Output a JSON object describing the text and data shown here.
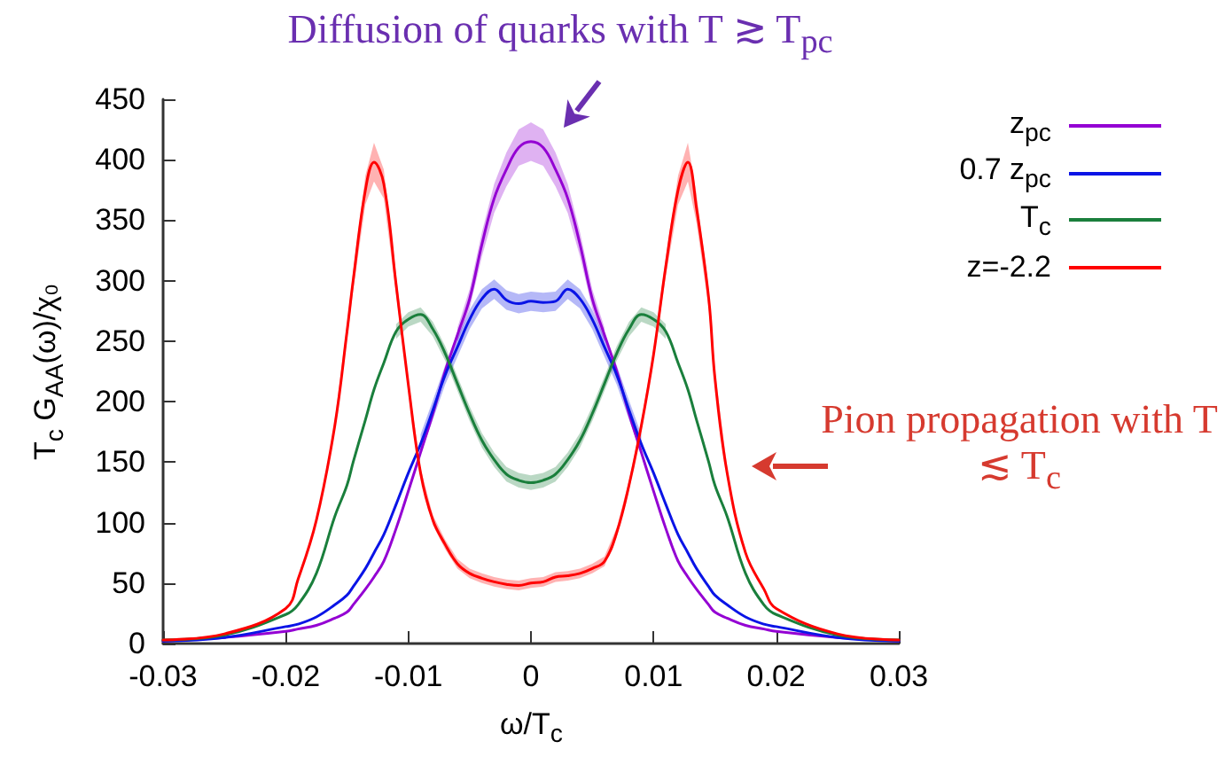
{
  "chart_data": {
    "type": "line",
    "xlabel": "ω/T$_{c}$",
    "ylabel": "T$_{c}$ G$_{AA}$(ω)/χ₀",
    "x": [
      -0.03,
      -0.025,
      -0.02,
      -0.019,
      -0.0175,
      -0.016,
      -0.015,
      -0.0145,
      -0.0135,
      -0.0128,
      -0.012,
      -0.011,
      -0.01,
      -0.009,
      -0.008,
      -0.007,
      -0.006,
      -0.005,
      -0.004,
      -0.003,
      -0.002,
      -0.001,
      0,
      0.001,
      0.002,
      0.003,
      0.004,
      0.005,
      0.006,
      0.007,
      0.008,
      0.009,
      0.01,
      0.011,
      0.012,
      0.0128,
      0.0135,
      0.0145,
      0.015,
      0.016,
      0.0175,
      0.019,
      0.02,
      0.025,
      0.03
    ],
    "series": [
      {
        "name": "z$_{pc}$",
        "color": "#9400d3",
        "values": [
          2,
          5,
          10,
          12,
          15,
          21,
          26,
          32,
          45,
          55,
          68,
          95,
          126,
          158,
          190,
          225,
          255,
          285,
          330,
          368,
          392,
          410,
          415,
          410,
          392,
          368,
          330,
          285,
          255,
          225,
          190,
          158,
          126,
          95,
          68,
          55,
          45,
          32,
          26,
          21,
          15,
          12,
          10,
          5,
          2
        ],
        "lower": [
          null,
          null,
          null,
          null,
          null,
          null,
          null,
          null,
          null,
          null,
          null,
          null,
          null,
          null,
          null,
          null,
          249,
          277,
          320,
          356,
          378,
          395,
          399,
          395,
          378,
          356,
          320,
          277,
          249,
          null,
          null,
          null,
          null,
          null,
          null,
          null,
          null,
          null,
          null,
          null,
          null,
          null,
          null,
          null,
          null
        ],
        "upper": [
          null,
          null,
          null,
          null,
          null,
          null,
          null,
          null,
          null,
          null,
          null,
          null,
          null,
          null,
          null,
          null,
          261,
          293,
          340,
          380,
          406,
          425,
          431,
          425,
          406,
          380,
          340,
          293,
          261,
          null,
          null,
          null,
          null,
          null,
          null,
          null,
          null,
          null,
          null,
          null,
          null,
          null,
          null,
          null,
          null
        ]
      },
      {
        "name": "0.7 z$_{pc}$",
        "color": "#0a14e6",
        "values": [
          2,
          5,
          14,
          16,
          22,
          32,
          40,
          47,
          62,
          75,
          90,
          115,
          141,
          165,
          193,
          222,
          245,
          268,
          285,
          293,
          284,
          281,
          283,
          282,
          283,
          293,
          285,
          268,
          245,
          222,
          193,
          165,
          141,
          115,
          90,
          75,
          62,
          47,
          40,
          32,
          22,
          16,
          14,
          5,
          2
        ],
        "lower": [
          null,
          null,
          null,
          null,
          null,
          null,
          null,
          null,
          null,
          null,
          null,
          null,
          null,
          157,
          185,
          214,
          237,
          260,
          277,
          285,
          276,
          273,
          275,
          274,
          275,
          285,
          277,
          260,
          237,
          214,
          185,
          157,
          null,
          null,
          null,
          null,
          null,
          null,
          null,
          null,
          null,
          null,
          null,
          null,
          null
        ],
        "upper": [
          null,
          null,
          null,
          null,
          null,
          null,
          null,
          null,
          null,
          null,
          null,
          null,
          null,
          173,
          201,
          230,
          253,
          276,
          293,
          301,
          292,
          289,
          291,
          290,
          291,
          301,
          293,
          276,
          253,
          230,
          201,
          173,
          null,
          null,
          null,
          null,
          null,
          null,
          null,
          null,
          null,
          null,
          null,
          null,
          null
        ]
      },
      {
        "name": "T$_{c}$",
        "color": "#1a7f3c",
        "values": [
          3,
          7,
          24,
          32,
          58,
          105,
          131,
          150,
          185,
          210,
          232,
          258,
          268,
          272,
          260,
          240,
          215,
          190,
          168,
          152,
          140,
          135,
          133,
          135,
          140,
          152,
          168,
          190,
          215,
          240,
          260,
          272,
          268,
          258,
          232,
          210,
          185,
          150,
          131,
          105,
          58,
          32,
          24,
          7,
          3
        ],
        "lower": [
          null,
          null,
          null,
          null,
          null,
          null,
          null,
          null,
          null,
          null,
          null,
          252,
          262,
          266,
          254,
          234,
          209,
          184,
          162,
          146,
          134,
          129,
          127,
          129,
          134,
          146,
          162,
          184,
          209,
          234,
          254,
          266,
          262,
          252,
          null,
          null,
          null,
          null,
          null,
          null,
          null,
          null,
          null,
          null,
          null
        ],
        "upper": [
          null,
          null,
          null,
          null,
          null,
          null,
          null,
          null,
          null,
          null,
          null,
          264,
          274,
          278,
          266,
          246,
          221,
          196,
          174,
          158,
          146,
          141,
          139,
          141,
          146,
          158,
          174,
          196,
          221,
          246,
          266,
          278,
          274,
          264,
          null,
          null,
          null,
          null,
          null,
          null,
          null,
          null,
          null,
          null,
          null
        ]
      },
      {
        "name": "z=-2.2",
        "color": "#ff0000",
        "values": [
          3,
          8,
          29,
          53,
          102,
          180,
          258,
          300,
          375,
          398,
          380,
          297,
          214,
          141,
          102,
          82,
          66,
          58,
          54,
          51,
          49,
          48,
          50,
          51,
          55,
          56,
          58,
          62,
          68,
          92,
          131,
          180,
          239,
          312,
          375,
          398,
          360,
          285,
          220,
          141,
          75,
          45,
          29,
          8,
          3
        ],
        "lower": [
          null,
          null,
          null,
          null,
          null,
          175,
          252,
          292,
          363,
          382,
          368,
          289,
          210,
          137,
          98,
          78,
          62,
          54,
          50,
          47,
          45,
          44,
          46,
          47,
          51,
          52,
          54,
          58,
          64,
          88,
          127,
          176,
          235,
          304,
          363,
          382,
          348,
          277,
          214,
          136,
          null,
          null,
          null,
          null,
          null
        ],
        "upper": [
          null,
          null,
          null,
          null,
          null,
          185,
          264,
          308,
          387,
          414,
          392,
          305,
          218,
          145,
          106,
          86,
          70,
          62,
          58,
          55,
          53,
          52,
          54,
          55,
          59,
          60,
          62,
          66,
          72,
          96,
          135,
          184,
          243,
          320,
          387,
          414,
          372,
          293,
          226,
          146,
          null,
          null,
          null,
          null,
          null
        ]
      }
    ],
    "xlim": [
      -0.03,
      0.03
    ],
    "xticks": [
      -0.03,
      -0.02,
      -0.01,
      0,
      0.01,
      0.02,
      0.03
    ],
    "ylim": [
      0,
      450
    ],
    "yticks": [
      0,
      50,
      100,
      150,
      200,
      250,
      300,
      350,
      400,
      450
    ],
    "grid": false,
    "legend": "top right",
    "marker": "none",
    "line_style": "solid",
    "annotations": [
      "Diffusion of quarks with T ≳ T$_{pc}$",
      "Pion propagation with T ≲ T$_{c}$"
    ]
  }
}
